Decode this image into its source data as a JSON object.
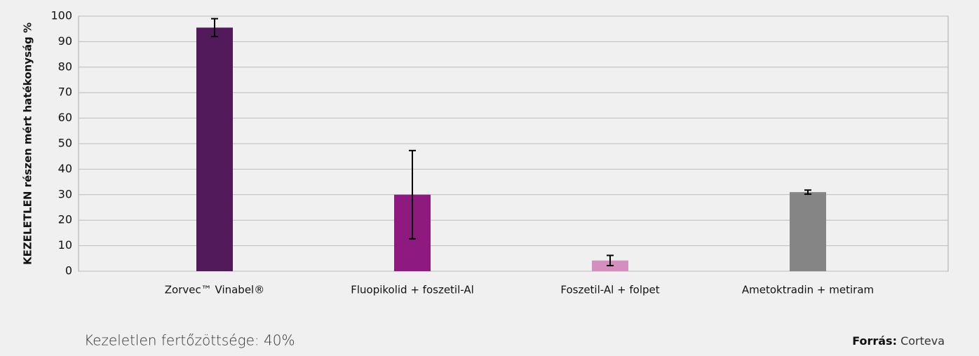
{
  "chart_data": {
    "type": "bar",
    "y_label": "KEZELETLEN részen mért hatékonyság %",
    "categories": [
      "Zorvec™ Vinabel®",
      "Fluopikolid + foszetil-Al",
      "Foszetil-Al + folpet",
      "Ametoktradin + metiram"
    ],
    "values": [
      95.5,
      30,
      4.2,
      31
    ],
    "errors": [
      3.5,
      17.3,
      2,
      0.8
    ],
    "colors": [
      "#521a5a",
      "#8e1a80",
      "#d48fbf",
      "#858585"
    ],
    "ylim": [
      0,
      100
    ],
    "yticks": [
      0,
      10,
      20,
      30,
      40,
      50,
      60,
      70,
      80,
      90,
      100
    ],
    "grid": true
  },
  "footer": {
    "note": "Kezeletlen fertőzöttsége: 40%",
    "source_label": "Forrás:",
    "source": "Corteva"
  }
}
